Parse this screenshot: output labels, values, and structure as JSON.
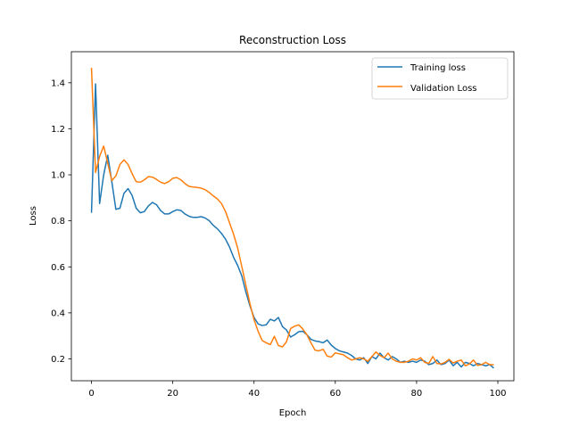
{
  "chart_data": {
    "type": "line",
    "title": "Reconstruction Loss",
    "xlabel": "Epoch",
    "ylabel": "Loss",
    "xlim": [
      -4.95,
      103.95
    ],
    "ylim": [
      0.105,
      1.535
    ],
    "xticks": [
      0,
      20,
      40,
      60,
      80,
      100
    ],
    "yticks": [
      0.2,
      0.4,
      0.6,
      0.8,
      1.0,
      1.2,
      1.4
    ],
    "ytick_labels": [
      "0.2",
      "0.4",
      "0.6",
      "0.8",
      "1.0",
      "1.2",
      "1.4"
    ],
    "legend": "top-right",
    "grid": false,
    "series": [
      {
        "name": "Training loss",
        "color": "#1f77b4",
        "x": [
          0,
          1,
          2,
          3,
          4,
          5,
          6,
          7,
          8,
          9,
          10,
          11,
          12,
          13,
          14,
          15,
          16,
          17,
          18,
          19,
          20,
          21,
          22,
          23,
          24,
          25,
          26,
          27,
          28,
          29,
          30,
          31,
          32,
          33,
          34,
          35,
          36,
          37,
          38,
          39,
          40,
          41,
          42,
          43,
          44,
          45,
          46,
          47,
          48,
          49,
          50,
          51,
          52,
          53,
          54,
          55,
          56,
          57,
          58,
          59,
          60,
          61,
          62,
          63,
          64,
          65,
          66,
          67,
          68,
          69,
          70,
          71,
          72,
          73,
          74,
          75,
          76,
          77,
          78,
          79,
          80,
          81,
          82,
          83,
          84,
          85,
          86,
          87,
          88,
          89,
          90,
          91,
          92,
          93,
          94,
          95,
          96,
          97,
          98,
          99
        ],
        "y": [
          0.835,
          1.395,
          0.875,
          1.0,
          1.085,
          0.97,
          0.85,
          0.855,
          0.92,
          0.94,
          0.91,
          0.855,
          0.835,
          0.84,
          0.865,
          0.88,
          0.87,
          0.845,
          0.83,
          0.83,
          0.84,
          0.848,
          0.845,
          0.83,
          0.82,
          0.815,
          0.815,
          0.818,
          0.812,
          0.8,
          0.78,
          0.765,
          0.745,
          0.72,
          0.685,
          0.64,
          0.605,
          0.56,
          0.49,
          0.43,
          0.38,
          0.352,
          0.345,
          0.348,
          0.372,
          0.365,
          0.38,
          0.34,
          0.325,
          0.295,
          0.305,
          0.318,
          0.32,
          0.305,
          0.285,
          0.278,
          0.275,
          0.27,
          0.282,
          0.26,
          0.245,
          0.235,
          0.23,
          0.225,
          0.215,
          0.2,
          0.195,
          0.205,
          0.18,
          0.21,
          0.2,
          0.225,
          0.205,
          0.195,
          0.21,
          0.2,
          0.185,
          0.19,
          0.185,
          0.19,
          0.185,
          0.195,
          0.19,
          0.175,
          0.18,
          0.195,
          0.175,
          0.18,
          0.195,
          0.17,
          0.185,
          0.165,
          0.185,
          0.18,
          0.17,
          0.18,
          0.175,
          0.17,
          0.175,
          0.16
        ]
      },
      {
        "name": "Validation Loss",
        "color": "#ff7f0e",
        "x": [
          0,
          1,
          2,
          3,
          4,
          5,
          6,
          7,
          8,
          9,
          10,
          11,
          12,
          13,
          14,
          15,
          16,
          17,
          18,
          19,
          20,
          21,
          22,
          23,
          24,
          25,
          26,
          27,
          28,
          29,
          30,
          31,
          32,
          33,
          34,
          35,
          36,
          37,
          38,
          39,
          40,
          41,
          42,
          43,
          44,
          45,
          46,
          47,
          48,
          49,
          50,
          51,
          52,
          53,
          54,
          55,
          56,
          57,
          58,
          59,
          60,
          61,
          62,
          63,
          64,
          65,
          66,
          67,
          68,
          69,
          70,
          71,
          72,
          73,
          74,
          75,
          76,
          77,
          78,
          79,
          80,
          81,
          82,
          83,
          84,
          85,
          86,
          87,
          88,
          89,
          90,
          91,
          92,
          93,
          94,
          95,
          96,
          97,
          98,
          99
        ],
        "y": [
          1.465,
          1.01,
          1.08,
          1.125,
          1.05,
          0.975,
          0.995,
          1.045,
          1.065,
          1.045,
          1.005,
          0.97,
          0.968,
          0.978,
          0.992,
          0.99,
          0.98,
          0.968,
          0.962,
          0.97,
          0.985,
          0.988,
          0.978,
          0.962,
          0.95,
          0.947,
          0.945,
          0.942,
          0.935,
          0.923,
          0.908,
          0.895,
          0.875,
          0.84,
          0.79,
          0.74,
          0.68,
          0.6,
          0.52,
          0.44,
          0.37,
          0.32,
          0.28,
          0.27,
          0.262,
          0.298,
          0.258,
          0.252,
          0.275,
          0.332,
          0.342,
          0.348,
          0.33,
          0.305,
          0.27,
          0.238,
          0.235,
          0.242,
          0.212,
          0.208,
          0.226,
          0.222,
          0.218,
          0.205,
          0.195,
          0.2,
          0.205,
          0.2,
          0.19,
          0.21,
          0.23,
          0.215,
          0.205,
          0.225,
          0.2,
          0.19,
          0.185,
          0.185,
          0.19,
          0.2,
          0.195,
          0.205,
          0.185,
          0.18,
          0.21,
          0.18,
          0.178,
          0.185,
          0.198,
          0.182,
          0.19,
          0.195,
          0.17,
          0.178,
          0.195,
          0.172,
          0.175,
          0.185,
          0.175,
          0.175
        ]
      }
    ]
  }
}
